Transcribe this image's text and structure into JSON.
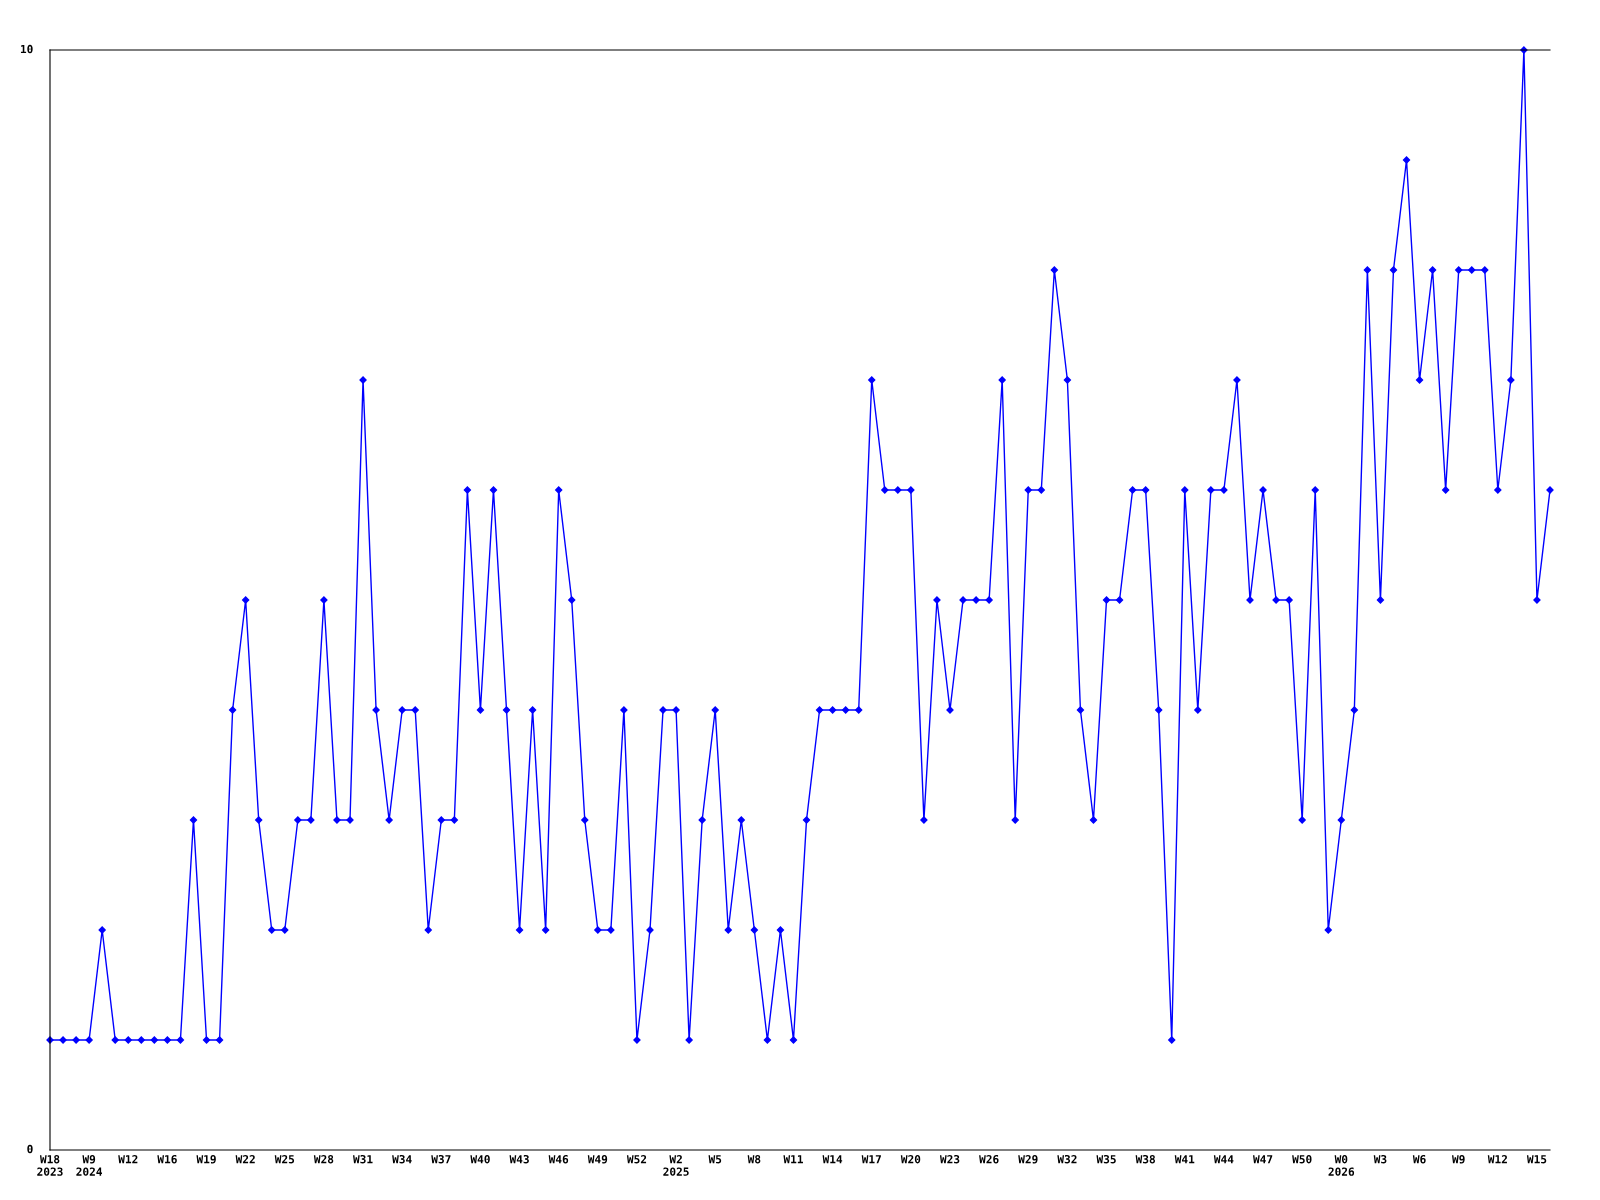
{
  "chart_data": {
    "type": "line",
    "categories": [
      "W18\n2023",
      null,
      null,
      "W9\n2024",
      null,
      null,
      "W12",
      null,
      null,
      "W16",
      null,
      null,
      "W19",
      null,
      null,
      "W22",
      null,
      null,
      "W25",
      null,
      null,
      "W28",
      null,
      null,
      "W31",
      null,
      null,
      "W34",
      null,
      null,
      "W37",
      null,
      null,
      "W40",
      null,
      null,
      "W43",
      null,
      null,
      "W46",
      null,
      null,
      "W49",
      null,
      null,
      "W52",
      null,
      null,
      "W2\n2025",
      null,
      null,
      "W5",
      null,
      null,
      "W8",
      null,
      null,
      "W11",
      null,
      null,
      "W14",
      null,
      null,
      "W17",
      null,
      null,
      "W20",
      null,
      null,
      "W23",
      null,
      null,
      "W26",
      null,
      null,
      "W29",
      null,
      null,
      "W32",
      null,
      null,
      "W35",
      null,
      null,
      "W38",
      null,
      null,
      "W41",
      null,
      null,
      "W44",
      null,
      null,
      "W47",
      null,
      null,
      "W50",
      null,
      null,
      "W0\n2026",
      null,
      null,
      "W3",
      null,
      null,
      "W6",
      null,
      null,
      "W9",
      null,
      null,
      "W12",
      null,
      null,
      "W15",
      null
    ],
    "series": [
      {
        "color": "#0000ff",
        "values": [
          1,
          1,
          1,
          1,
          2,
          1,
          1,
          1,
          1,
          1,
          1,
          3,
          1,
          1,
          4,
          5,
          3,
          2,
          2,
          3,
          3,
          5,
          3,
          3,
          7,
          4,
          3,
          4,
          4,
          2,
          3,
          3,
          6,
          4,
          6,
          4,
          2,
          4,
          2,
          6,
          5,
          3,
          2,
          2,
          4,
          1,
          2,
          4,
          4,
          1,
          3,
          4,
          2,
          3,
          2,
          1,
          2,
          1,
          3,
          4,
          4,
          4,
          4,
          7,
          6,
          6,
          6,
          3,
          5,
          4,
          5,
          5,
          5,
          7,
          3,
          6,
          6,
          8,
          7,
          4,
          3,
          5,
          5,
          6,
          6,
          4,
          1,
          6,
          4,
          6,
          6,
          7,
          5,
          6,
          5,
          5,
          3,
          6,
          2,
          3,
          4,
          8,
          5,
          8,
          9,
          7,
          8,
          6,
          8,
          8,
          8,
          6,
          7,
          10,
          5,
          6
        ]
      }
    ],
    "ylim": [
      0,
      10
    ],
    "yticks": [
      0,
      10
    ],
    "grid": false,
    "legend": false,
    "marker": "diamond",
    "line_style": "solid"
  }
}
